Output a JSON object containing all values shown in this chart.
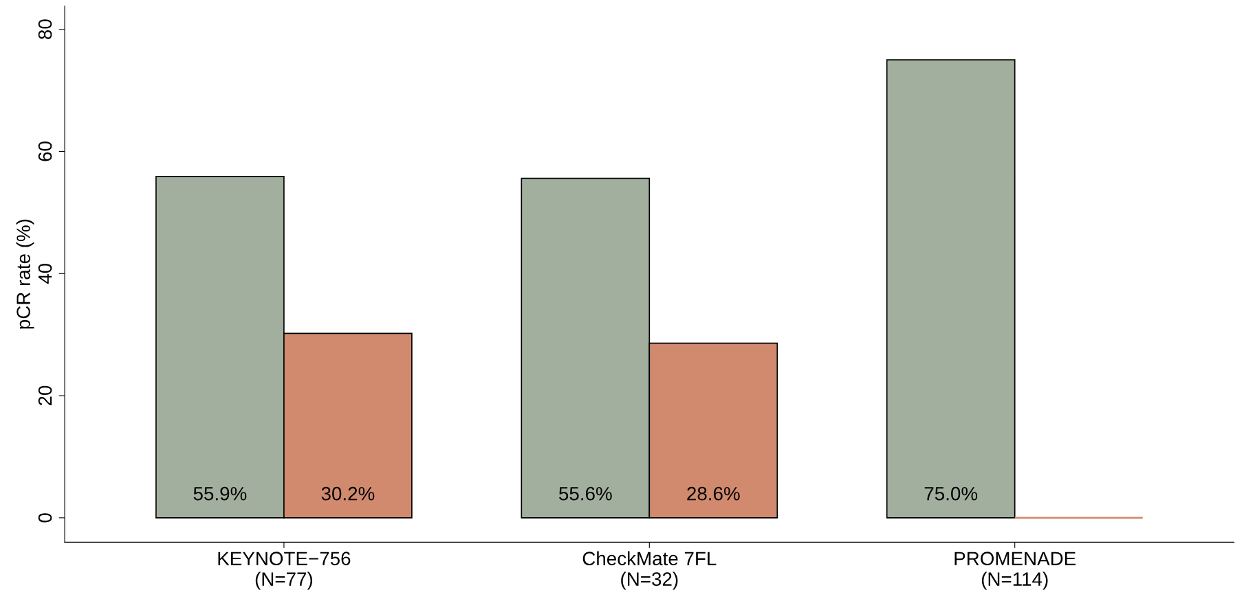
{
  "chart_data": {
    "type": "bar",
    "ylabel": "pCR rate (%)",
    "categories": [
      "KEYNOTE−756\n(N=77)",
      "CheckMate 7FL\n(N=32)",
      "PROMENADE\n(N=114)"
    ],
    "series": [
      {
        "color": "#a3af9e",
        "values": [
          55.9,
          55.6,
          75.0
        ],
        "value_labels": [
          "55.9%",
          "55.6%",
          "75.0%"
        ]
      },
      {
        "color": "#d18a6e",
        "values": [
          30.2,
          28.6,
          0
        ],
        "value_labels": [
          "30.2%",
          "28.6%",
          null
        ]
      }
    ],
    "ylim": [
      -4,
      83.8
    ],
    "yticks": [
      0,
      20,
      40,
      60,
      80
    ],
    "grid": false,
    "legend": false
  }
}
